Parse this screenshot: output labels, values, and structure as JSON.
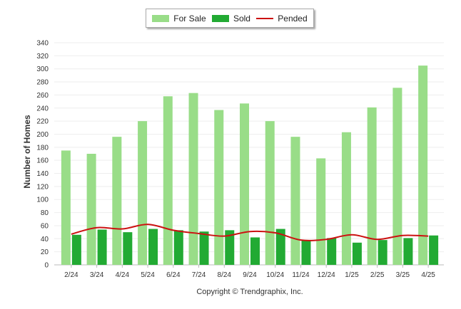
{
  "chart_data": {
    "type": "bar",
    "categories": [
      "2/24",
      "3/24",
      "4/24",
      "5/24",
      "6/24",
      "7/24",
      "8/24",
      "9/24",
      "10/24",
      "11/24",
      "12/24",
      "1/25",
      "2/25",
      "3/25",
      "4/25"
    ],
    "series": [
      {
        "name": "For Sale",
        "type": "bar",
        "color": "#99dd88",
        "values": [
          175,
          170,
          196,
          220,
          258,
          263,
          237,
          247,
          220,
          196,
          163,
          203,
          241,
          271,
          305
        ]
      },
      {
        "name": "Sold",
        "type": "bar",
        "color": "#22aa33",
        "values": [
          46,
          54,
          50,
          55,
          53,
          51,
          53,
          42,
          55,
          37,
          41,
          34,
          38,
          41,
          45
        ]
      },
      {
        "name": "Pended",
        "type": "line",
        "color": "#cc1111",
        "values": [
          47,
          57,
          55,
          62,
          53,
          48,
          44,
          51,
          49,
          38,
          39,
          46,
          39,
          45,
          44
        ]
      }
    ],
    "ylabel": "Number of Homes",
    "xlabel": "",
    "ylim": [
      0,
      340
    ],
    "ytick_step": 20,
    "legend_position": "top-center",
    "grid": true
  },
  "footer": {
    "copyright": "Copyright © Trendgraphix, Inc."
  }
}
